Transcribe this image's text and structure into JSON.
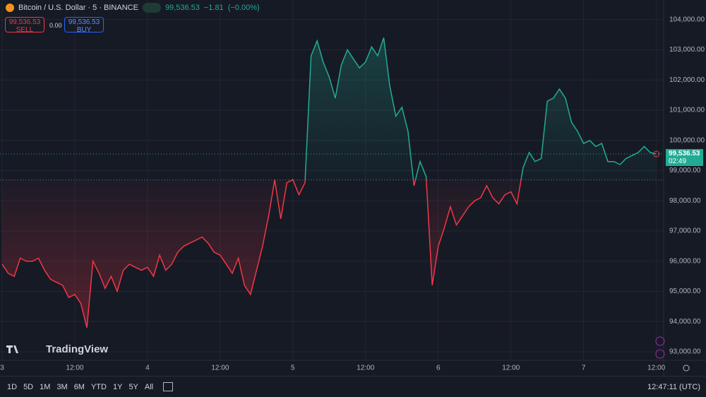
{
  "header": {
    "symbol": "Bitcoin / U.S. Dollar · 5 · BINANCE",
    "price": "99,536.53",
    "change": "−1.81",
    "change_pct": "(−0.00%)"
  },
  "trade": {
    "sell_price": "99,536.53",
    "sell": "SELL",
    "spread": "0.00",
    "buy_price": "99,536.53",
    "buy": "BUY"
  },
  "price_tag": {
    "price": "99,536.53",
    "countdown": "02:49"
  },
  "logo": "TradingView",
  "toolbar": {
    "ranges": [
      "1D",
      "5D",
      "1M",
      "3M",
      "6M",
      "YTD",
      "1Y",
      "5Y",
      "All"
    ],
    "clock": "12:47:11 (UTC)"
  },
  "chart_data": {
    "type": "baseline",
    "categories": [
      "3",
      null,
      null,
      null,
      null,
      null,
      null,
      null,
      null,
      null,
      null,
      null,
      "12:00",
      null,
      null,
      null,
      null,
      null,
      null,
      null,
      null,
      null,
      null,
      null,
      "4",
      null,
      null,
      null,
      null,
      null,
      null,
      null,
      null,
      null,
      null,
      null,
      "12:00",
      null,
      null,
      null,
      null,
      null,
      null,
      null,
      null,
      null,
      null,
      null,
      "5",
      null,
      null,
      null,
      null,
      null,
      null,
      null,
      null,
      null,
      null,
      null,
      "12:00",
      null,
      null,
      null,
      null,
      null,
      null,
      null,
      null,
      null,
      null,
      null,
      "6",
      null,
      null,
      null,
      null,
      null,
      null,
      null,
      null,
      null,
      null,
      null,
      "12:00",
      null,
      null,
      null,
      null,
      null,
      null,
      null,
      null,
      null,
      null,
      null,
      "7",
      null,
      null,
      null,
      null,
      null,
      null,
      null,
      null,
      null,
      null,
      null,
      "12:00"
    ],
    "values": [
      95900,
      95600,
      95500,
      96100,
      96000,
      96000,
      96100,
      95700,
      95400,
      95300,
      95200,
      94800,
      94900,
      94600,
      93800,
      96000,
      95600,
      95100,
      95500,
      95000,
      95700,
      95900,
      95800,
      95700,
      95800,
      95500,
      96200,
      95700,
      95900,
      96300,
      96500,
      96600,
      96700,
      96800,
      96600,
      96300,
      96200,
      95900,
      95600,
      96100,
      95200,
      94900,
      95700,
      96500,
      97500,
      98700,
      97400,
      98600,
      98700,
      98200,
      98600,
      102800,
      103300,
      102600,
      102100,
      101400,
      102500,
      103000,
      102700,
      102400,
      102600,
      103100,
      102800,
      103400,
      101800,
      100800,
      101100,
      100300,
      98500,
      99300,
      98800,
      95200,
      96500,
      97100,
      97800,
      97200,
      97500,
      97800,
      98000,
      98100,
      98500,
      98100,
      97900,
      98200,
      98300,
      97900,
      99100,
      99600,
      99300,
      99400,
      101300,
      101400,
      101700,
      101400,
      100600,
      100300,
      99900,
      100000,
      99800,
      99900,
      99300,
      99300,
      99200,
      99400,
      99500,
      99600,
      99800,
      99600,
      99550
    ],
    "baseline": 98690,
    "up_color": "#22ab94",
    "down_color": "#f23645",
    "ylim": [
      92720,
      104650
    ],
    "yticks": [
      {
        "value": 93000,
        "label": "93,000.00"
      },
      {
        "value": 94000,
        "label": "94,000.00"
      },
      {
        "value": 95000,
        "label": "95,000.00"
      },
      {
        "value": 96000,
        "label": "96,000.00"
      },
      {
        "value": 97000,
        "label": "97,000.00"
      },
      {
        "value": 98000,
        "label": "98,000.00"
      },
      {
        "value": 99000,
        "label": "99,000.00"
      },
      {
        "value": 100000,
        "label": "100,000.00"
      },
      {
        "value": 101000,
        "label": "101,000.00"
      },
      {
        "value": 102000,
        "label": "102,000.00"
      },
      {
        "value": 103000,
        "label": "103,000.00"
      },
      {
        "value": 104000,
        "label": "104,000.00"
      }
    ],
    "grid": true
  }
}
